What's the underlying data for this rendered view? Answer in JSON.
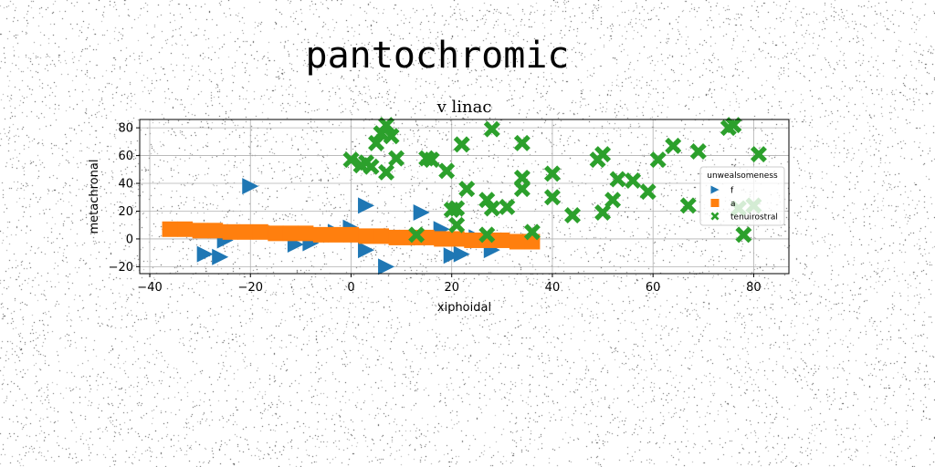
{
  "page_title": "pantochromic",
  "chart_data": {
    "type": "scatter",
    "title": "v linac",
    "xlabel": "xiphoidal",
    "ylabel": "metachronal",
    "xlim": [
      -42,
      87
    ],
    "ylim": [
      -25,
      86
    ],
    "xticks": [
      -40,
      -20,
      0,
      20,
      40,
      60,
      80
    ],
    "yticks": [
      -20,
      0,
      20,
      40,
      60,
      80
    ],
    "grid": true,
    "legend": {
      "title": "unwealsomeness",
      "placement": "right"
    },
    "series": [
      {
        "name": "f",
        "marker": "triangle-right",
        "color": "#1f77b4",
        "points": [
          [
            -20,
            38
          ],
          [
            -29,
            -11
          ],
          [
            -26,
            -13
          ],
          [
            -25,
            -1
          ],
          [
            -23,
            5
          ],
          [
            -11,
            -4
          ],
          [
            -8,
            -3
          ],
          [
            -3,
            5
          ],
          [
            0,
            8
          ],
          [
            2,
            4
          ],
          [
            3,
            24
          ],
          [
            3,
            -8
          ],
          [
            7,
            -20
          ],
          [
            14,
            19
          ],
          [
            18,
            7
          ],
          [
            20,
            -12
          ],
          [
            22,
            -11
          ],
          [
            25,
            1
          ],
          [
            28,
            -8
          ]
        ]
      },
      {
        "name": "a",
        "marker": "square",
        "color": "#ff7f0e",
        "points": [
          [
            -36,
            7
          ],
          [
            -33,
            7
          ],
          [
            -30,
            6
          ],
          [
            -27,
            6
          ],
          [
            -24,
            5
          ],
          [
            -21,
            5
          ],
          [
            -18,
            5
          ],
          [
            -15,
            4
          ],
          [
            -12,
            4
          ],
          [
            -9,
            4
          ],
          [
            -6,
            3
          ],
          [
            -3,
            3
          ],
          [
            0,
            3
          ],
          [
            3,
            2
          ],
          [
            6,
            2
          ],
          [
            9,
            1
          ],
          [
            12,
            1
          ],
          [
            15,
            1
          ],
          [
            18,
            0
          ],
          [
            21,
            0
          ],
          [
            24,
            -1
          ],
          [
            27,
            -1
          ],
          [
            30,
            -1
          ],
          [
            33,
            -2
          ],
          [
            36,
            -2
          ]
        ]
      },
      {
        "name": "tenuirostral",
        "marker": "x-filled",
        "color": "#2ca02c",
        "points": [
          [
            0,
            57
          ],
          [
            2,
            53
          ],
          [
            3,
            55
          ],
          [
            4,
            52
          ],
          [
            5,
            69
          ],
          [
            6,
            76
          ],
          [
            7,
            82
          ],
          [
            7,
            48
          ],
          [
            8,
            74
          ],
          [
            9,
            58
          ],
          [
            13,
            3
          ],
          [
            15,
            58
          ],
          [
            16,
            57
          ],
          [
            19,
            49
          ],
          [
            20,
            21
          ],
          [
            21,
            22
          ],
          [
            21,
            10
          ],
          [
            22,
            68
          ],
          [
            23,
            36
          ],
          [
            27,
            3
          ],
          [
            27,
            28
          ],
          [
            28,
            79
          ],
          [
            28,
            22
          ],
          [
            31,
            23
          ],
          [
            34,
            44
          ],
          [
            34,
            36
          ],
          [
            34,
            69
          ],
          [
            36,
            5
          ],
          [
            40,
            47
          ],
          [
            40,
            30
          ],
          [
            44,
            17
          ],
          [
            49,
            57
          ],
          [
            50,
            61
          ],
          [
            50,
            19
          ],
          [
            52,
            28
          ],
          [
            53,
            43
          ],
          [
            56,
            42
          ],
          [
            59,
            34
          ],
          [
            61,
            57
          ],
          [
            64,
            67
          ],
          [
            67,
            24
          ],
          [
            69,
            63
          ],
          [
            75,
            80
          ],
          [
            76,
            82
          ],
          [
            77,
            22
          ],
          [
            78,
            3
          ],
          [
            80,
            24
          ],
          [
            81,
            61
          ]
        ]
      }
    ]
  }
}
